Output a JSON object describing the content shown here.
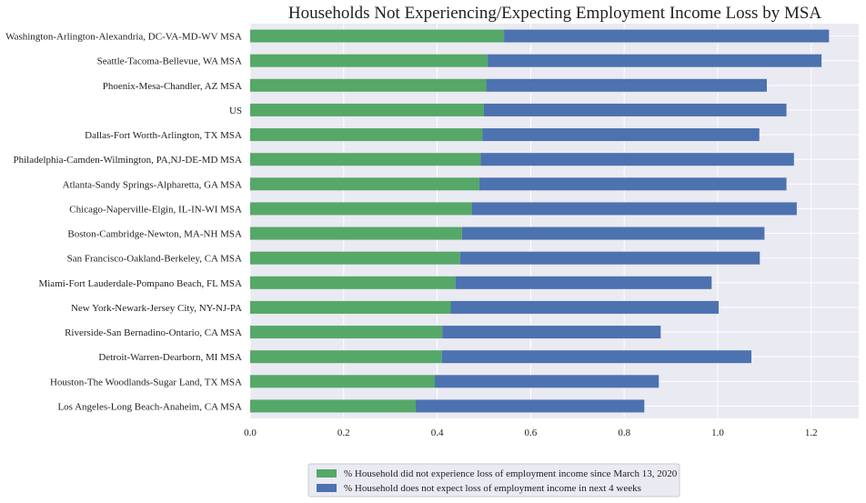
{
  "chart_data": {
    "type": "bar",
    "orientation": "horizontal",
    "stacked": true,
    "title": "Households Not Experiencing/Expecting Employment Income Loss by MSA",
    "categories": [
      "Washington-Arlington-Alexandria, DC-VA-MD-WV MSA",
      "Seattle-Tacoma-Bellevue, WA MSA",
      "Phoenix-Mesa-Chandler, AZ MSA",
      "US",
      "Dallas-Fort Worth-Arlington, TX MSA",
      "Philadelphia-Camden-Wilmington, PA,NJ-DE-MD MSA",
      "Atlanta-Sandy Springs-Alpharetta, GA MSA",
      "Chicago-Naperville-Elgin, IL-IN-WI MSA",
      "Boston-Cambridge-Newton, MA-NH MSA",
      "San Francisco-Oakland-Berkeley, CA MSA",
      "Miami-Fort Lauderdale-Pompano Beach, FL MSA",
      "New York-Newark-Jersey City, NY-NJ-PA",
      "Riverside-San Bernadino-Ontario, CA MSA",
      "Detroit-Warren-Dearborn, MI MSA",
      "Houston-The Woodlands-Sugar Land, TX MSA",
      "Los Angeles-Long Beach-Anaheim, CA MSA"
    ],
    "series": [
      {
        "name": "% Household did not experience loss of employment income since March 13, 2020",
        "color": "#55a868",
        "values": [
          0.543,
          0.508,
          0.505,
          0.5,
          0.497,
          0.493,
          0.49,
          0.474,
          0.453,
          0.449,
          0.439,
          0.429,
          0.411,
          0.41,
          0.395,
          0.354
        ]
      },
      {
        "name": "% Household does not expect loss of employment income in next 4 weeks",
        "color": "#4c72b0",
        "values": [
          0.695,
          0.714,
          0.6,
          0.647,
          0.592,
          0.67,
          0.657,
          0.695,
          0.647,
          0.641,
          0.548,
          0.573,
          0.467,
          0.662,
          0.479,
          0.489
        ]
      }
    ],
    "x_ticks": [
      "0.0",
      "0.2",
      "0.4",
      "0.6",
      "0.8",
      "1.0",
      "1.2"
    ],
    "xlim": [
      0,
      1.3
    ],
    "grid": true,
    "legend_position": "bottom-center",
    "plot_background": "#eaeaf2",
    "grid_color": "#ffffff"
  }
}
